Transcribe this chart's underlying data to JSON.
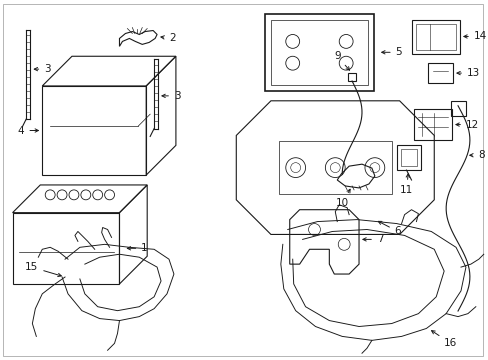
{
  "background_color": "#ffffff",
  "line_color": "#1a1a1a",
  "fig_width": 4.89,
  "fig_height": 3.6,
  "dpi": 100,
  "border_color": "#cccccc",
  "font_size": 7.5
}
